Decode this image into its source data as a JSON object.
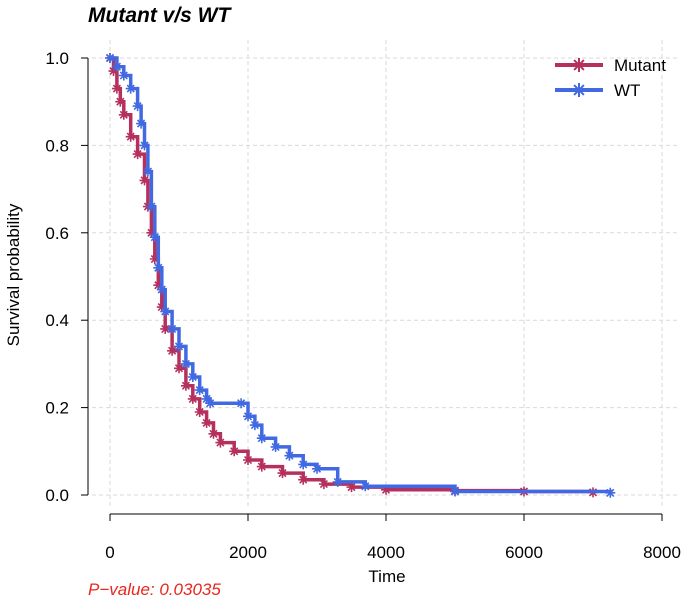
{
  "chart_data": {
    "type": "line",
    "title": "Mutant v/s WT",
    "xlabel": "Time",
    "ylabel": "Survival probability",
    "xlim": [
      0,
      8000
    ],
    "ylim": [
      0,
      1
    ],
    "xticks": [
      "0",
      "2000",
      "4000",
      "6000",
      "8000"
    ],
    "yticks": [
      "0.0",
      "0.2",
      "0.4",
      "0.6",
      "0.8",
      "1.0"
    ],
    "grid": true,
    "legend": "top-right",
    "annotation": "P−value: 0.03035",
    "series": [
      {
        "name": "Mutant",
        "color": "#b5305d",
        "x": [
          0,
          50,
          100,
          150,
          200,
          300,
          400,
          500,
          550,
          600,
          650,
          700,
          750,
          800,
          900,
          1000,
          1100,
          1200,
          1300,
          1400,
          1500,
          1600,
          1800,
          2000,
          2200,
          2500,
          2800,
          3100,
          3500,
          4000,
          5000,
          6000,
          7000
        ],
        "y": [
          1.0,
          0.97,
          0.93,
          0.9,
          0.87,
          0.82,
          0.78,
          0.72,
          0.66,
          0.6,
          0.54,
          0.48,
          0.43,
          0.38,
          0.33,
          0.29,
          0.25,
          0.22,
          0.19,
          0.165,
          0.14,
          0.12,
          0.1,
          0.08,
          0.065,
          0.05,
          0.035,
          0.025,
          0.018,
          0.012,
          0.01,
          0.008,
          0.006
        ]
      },
      {
        "name": "WT",
        "color": "#4169e1",
        "x": [
          0,
          100,
          200,
          300,
          400,
          450,
          500,
          550,
          600,
          650,
          700,
          750,
          800,
          900,
          1000,
          1100,
          1200,
          1300,
          1400,
          1450,
          1900,
          2000,
          2100,
          2200,
          2400,
          2600,
          2800,
          3000,
          3300,
          3700,
          5000,
          7250
        ],
        "y": [
          1.0,
          0.98,
          0.96,
          0.93,
          0.89,
          0.85,
          0.8,
          0.74,
          0.66,
          0.59,
          0.52,
          0.47,
          0.42,
          0.38,
          0.34,
          0.3,
          0.27,
          0.24,
          0.22,
          0.21,
          0.21,
          0.18,
          0.16,
          0.13,
          0.11,
          0.09,
          0.07,
          0.06,
          0.03,
          0.02,
          0.008,
          0.005
        ]
      }
    ]
  }
}
